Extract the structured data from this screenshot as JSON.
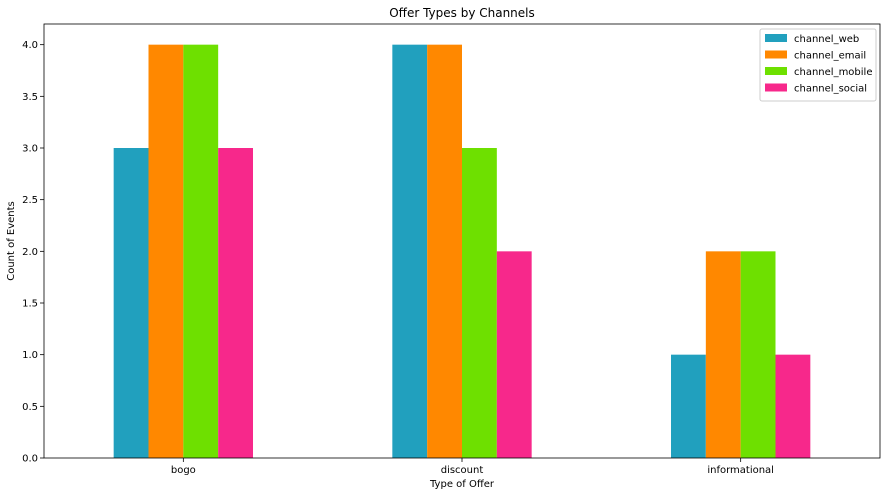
{
  "chart_data": {
    "type": "bar",
    "title": "Offer Types by Channels",
    "xlabel": "Type of Offer",
    "ylabel": "Count of Events",
    "categories": [
      "bogo",
      "discount",
      "informational"
    ],
    "series": [
      {
        "name": "channel_web",
        "color": "#21a0be",
        "values": [
          3,
          4,
          1
        ]
      },
      {
        "name": "channel_email",
        "color": "#ff8800",
        "values": [
          4,
          4,
          2
        ]
      },
      {
        "name": "channel_mobile",
        "color": "#6ee000",
        "values": [
          4,
          3,
          2
        ]
      },
      {
        "name": "channel_social",
        "color": "#f7288b",
        "values": [
          3,
          2,
          1
        ]
      }
    ],
    "ylim": [
      0,
      4.2
    ],
    "yticks": [
      "0.0",
      "0.5",
      "1.0",
      "1.5",
      "2.0",
      "2.5",
      "3.0",
      "3.5",
      "4.0"
    ],
    "grid": false,
    "legend": "top-right"
  }
}
